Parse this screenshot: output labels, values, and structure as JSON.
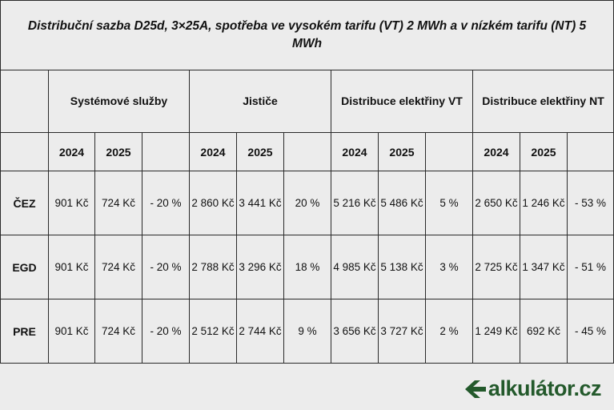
{
  "table": {
    "title": "Distribuční sazba D25d, 3×25A, spotřeba ve vysokém tarifu (VT) 2 MWh a v nízkém tarifu (NT) 5 MWh",
    "groups": [
      "Systémové služby",
      "Jističe",
      "Distribuce elektřiny VT",
      "Distribuce elektřiny NT"
    ],
    "years": [
      "2024",
      "2025",
      "2024",
      "2025",
      "2024",
      "2025",
      "2024",
      "2025"
    ],
    "rows": [
      {
        "company": "ČEZ",
        "cells": [
          "901 Kč",
          "724 Kč",
          "- 20 %",
          "2 860 Kč",
          "3 441 Kč",
          "20 %",
          "5 216 Kč",
          "5 486 Kč",
          "5 %",
          "2 650 Kč",
          "1 246 Kč",
          "- 53 %"
        ]
      },
      {
        "company": "EGD",
        "cells": [
          "901 Kč",
          "724 Kč",
          "- 20 %",
          "2 788 Kč",
          "3 296 Kč",
          "18 %",
          "4 985 Kč",
          "5 138 Kč",
          "3 %",
          "2 725 Kč",
          "1 347 Kč",
          "- 51 %"
        ]
      },
      {
        "company": "PRE",
        "cells": [
          "901 Kč",
          "724 Kč",
          "- 20 %",
          "2 512 Kč",
          "2 744 Kč",
          "9 %",
          "3 656 Kč",
          "3 727 Kč",
          "2 %",
          "1 249 Kč",
          "692 Kč",
          "- 45 %"
        ]
      }
    ]
  },
  "logo": {
    "text": "alkulátor.cz",
    "icon": "k-arrow-logo-icon",
    "color": "#23592b"
  }
}
